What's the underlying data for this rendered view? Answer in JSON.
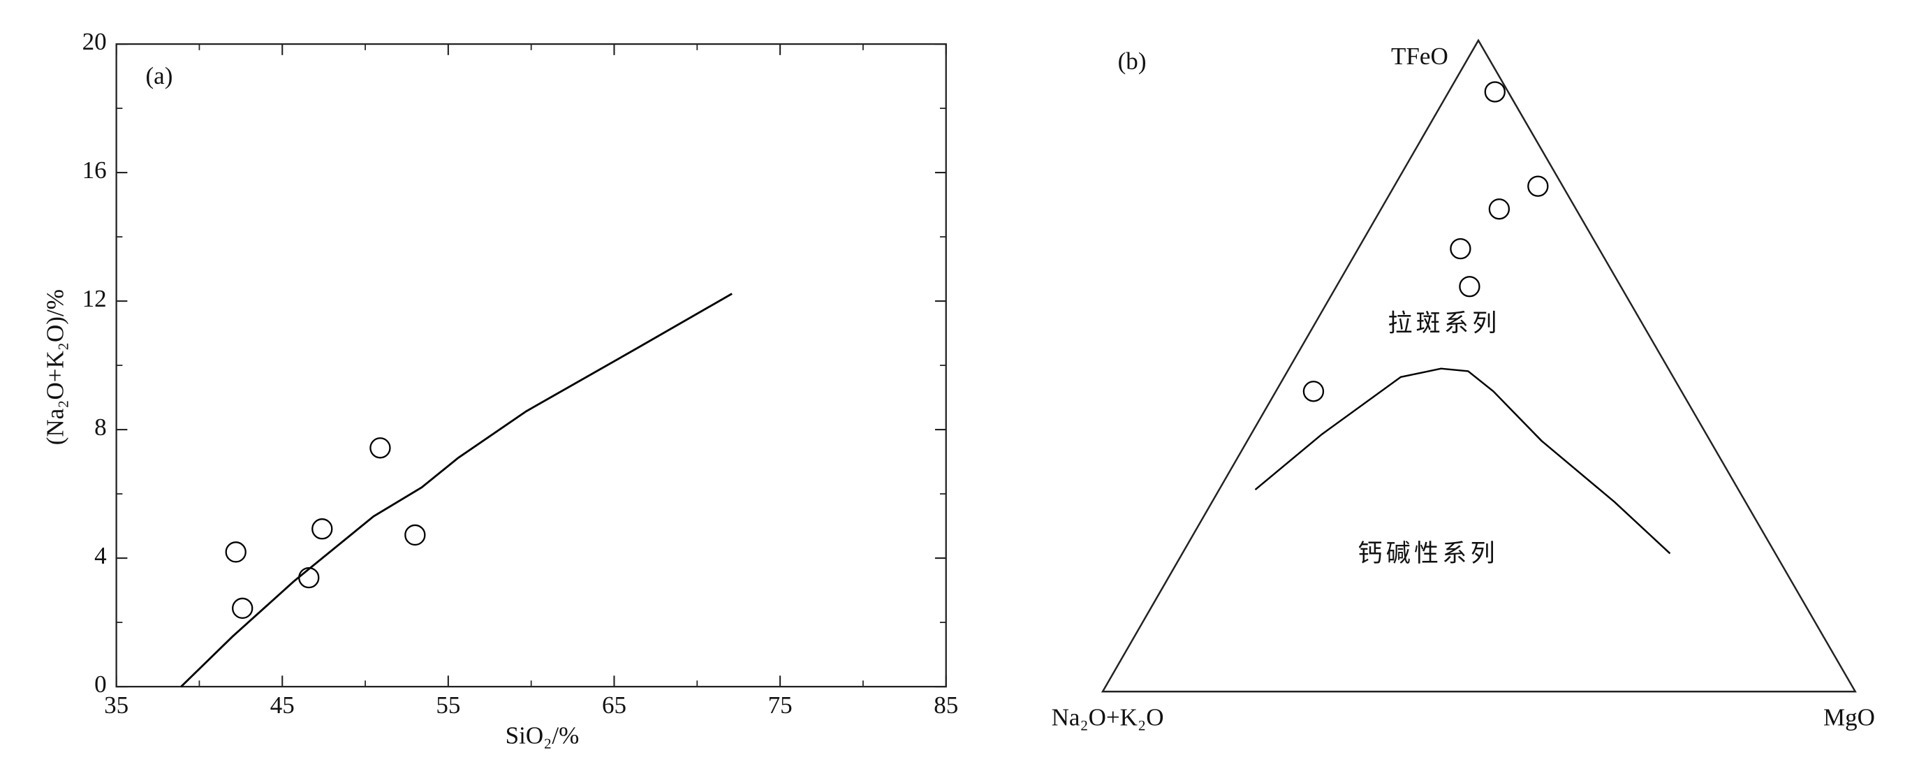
{
  "chart_data": [
    {
      "type": "scatter",
      "panel_label": "(a)",
      "x_label": "SiO₂/%",
      "y_label": "(Na₂O+K₂O)/%",
      "xlim": [
        35,
        85
      ],
      "xticks": [
        35,
        45,
        55,
        65,
        75,
        85
      ],
      "xminorticks": [
        40,
        50,
        60,
        70,
        80
      ],
      "ylim": [
        0,
        20
      ],
      "yticks": [
        0,
        4,
        8,
        12,
        16,
        20
      ],
      "yminorticks": [
        2,
        6,
        10,
        14,
        18
      ],
      "series": [
        {
          "x": [
            42.2,
            42.6,
            46.6,
            47.4,
            50.9,
            53.0
          ],
          "values": [
            4.19,
            2.44,
            3.39,
            4.91,
            7.43,
            4.72
          ],
          "color": "#000000"
        }
      ],
      "line": {
        "x": [
          38.9,
          42.0,
          45.7,
          50.5,
          53.4,
          55.6,
          59.7,
          66.3,
          72.1
        ],
        "values": [
          0,
          1.56,
          3.28,
          5.3,
          6.2,
          7.12,
          8.57,
          10.51,
          12.23
        ],
        "color": "#000000"
      }
    },
    {
      "type": "ternary",
      "panel_label": "(b)",
      "corners": {
        "left": "Na₂O+K₂O",
        "top": "TFeO",
        "right": "MgO"
      },
      "points": {
        "a": [
          1.75,
          3.3,
          10.2,
          18.4,
          20.1,
          48.9
        ],
        "f": [
          92.1,
          77.6,
          74.1,
          68.0,
          62.2,
          46.1
        ],
        "m": [
          6.15,
          19.1,
          15.7,
          13.6,
          17.7,
          5.0
        ]
      },
      "curve": {
        "a": [
          64.2,
          51.1,
          36.2,
          30.2,
          26.8,
          25.0,
          22.4,
          17.4,
          14.0
        ],
        "f": [
          31.0,
          39.5,
          48.3,
          49.6,
          49.2,
          46.1,
          38.5,
          29.1,
          21.2
        ],
        "m": [
          4.8,
          9.4,
          15.5,
          20.2,
          24.0,
          28.9,
          39.1,
          53.5,
          64.8
        ]
      },
      "regions": [
        "拉斑系列",
        "钙碱性系列"
      ],
      "color": "#000000"
    }
  ]
}
